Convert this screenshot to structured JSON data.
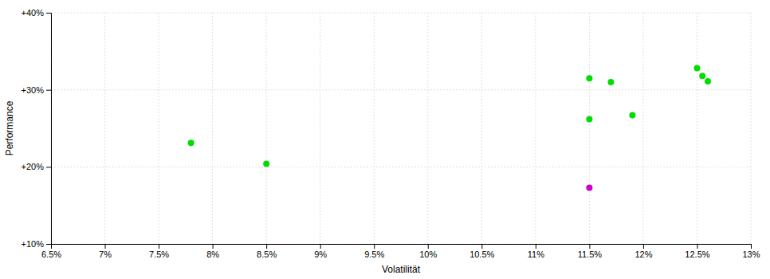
{
  "chart_data": {
    "type": "scatter",
    "x_label": "Volatilität",
    "y_label": "Performance",
    "xlim": [
      0.065,
      0.13
    ],
    "ylim": [
      0.1,
      0.4
    ],
    "xticks": [
      {
        "value": 0.065,
        "label": "6.5%"
      },
      {
        "value": 0.07,
        "label": "7%"
      },
      {
        "value": 0.075,
        "label": "7.5%"
      },
      {
        "value": 0.08,
        "label": "8%"
      },
      {
        "value": 0.085,
        "label": "8.5%"
      },
      {
        "value": 0.09,
        "label": "9%"
      },
      {
        "value": 0.095,
        "label": "9.5%"
      },
      {
        "value": 0.1,
        "label": "10%"
      },
      {
        "value": 0.105,
        "label": "10.5%"
      },
      {
        "value": 0.11,
        "label": "11%"
      },
      {
        "value": 0.115,
        "label": "11.5%"
      },
      {
        "value": 0.12,
        "label": "12%"
      },
      {
        "value": 0.125,
        "label": "12.5%"
      },
      {
        "value": 0.13,
        "label": "13%"
      }
    ],
    "yticks": [
      {
        "value": 0.1,
        "label": "+10%"
      },
      {
        "value": 0.2,
        "label": "+20%"
      },
      {
        "value": 0.3,
        "label": "+30%"
      },
      {
        "value": 0.4,
        "label": "+40%"
      }
    ],
    "grid": true,
    "series": [
      {
        "color": "#00dd00",
        "x": [
          0.078,
          0.085,
          0.115,
          0.119,
          0.115,
          0.117,
          0.125,
          0.1255,
          0.126
        ],
        "values": [
          0.231,
          0.204,
          0.262,
          0.267,
          0.315,
          0.31,
          0.328,
          0.318,
          0.311
        ]
      },
      {
        "color": "#cc00cc",
        "x": [
          0.115
        ],
        "values": [
          0.173
        ]
      }
    ]
  }
}
